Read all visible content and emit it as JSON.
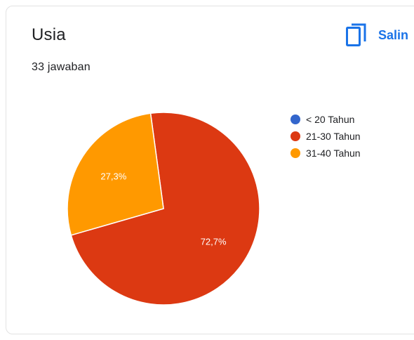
{
  "header": {
    "title": "Usia",
    "responses": "33 jawaban",
    "copy_label": "Salin",
    "copy_icon": "copy-icon"
  },
  "colors": {
    "accent": "#1a73e8",
    "slice_text": "#ffffff"
  },
  "chart_data": {
    "type": "pie",
    "title": "Usia",
    "legend_position": "right",
    "slices": [
      {
        "label": "< 20 Tahun",
        "value": 0,
        "display": "",
        "color": "#3366cc"
      },
      {
        "label": "21-30 Tahun",
        "value": 72.7,
        "display": "72,7%",
        "color": "#dc3912"
      },
      {
        "label": "31-40 Tahun",
        "value": 27.3,
        "display": "27,3%",
        "color": "#ff9900"
      }
    ]
  }
}
